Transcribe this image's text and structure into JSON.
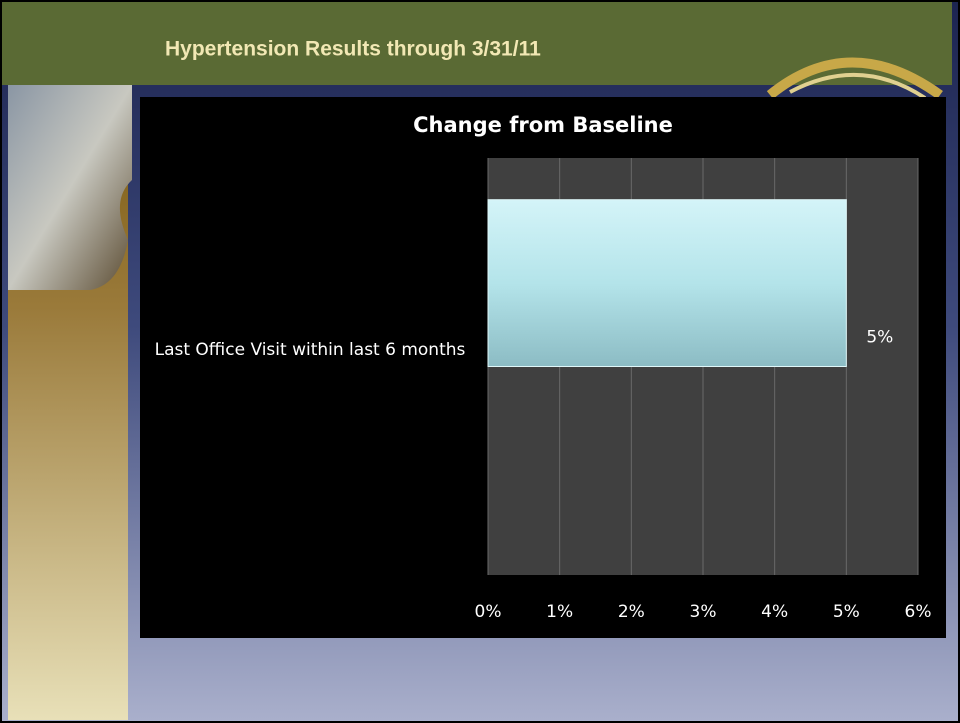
{
  "slide_title": "Hypertension Results through 3/31/11",
  "chart_data": {
    "type": "hbar",
    "title": "Change from Baseline",
    "categories": [
      "Last Office Visit within last 6 months"
    ],
    "values": [
      5
    ],
    "value_labels": [
      "5%"
    ],
    "color": "#b4e4ea",
    "xlim": [
      0,
      6
    ],
    "xticks": [
      {
        "value": 0,
        "label": "0%"
      },
      {
        "value": 1,
        "label": "1%"
      },
      {
        "value": 2,
        "label": "2%"
      },
      {
        "value": 3,
        "label": "3%"
      },
      {
        "value": 4,
        "label": "4%"
      },
      {
        "value": 5,
        "label": "5%"
      },
      {
        "value": 6,
        "label": "6%"
      }
    ],
    "grid": true
  }
}
